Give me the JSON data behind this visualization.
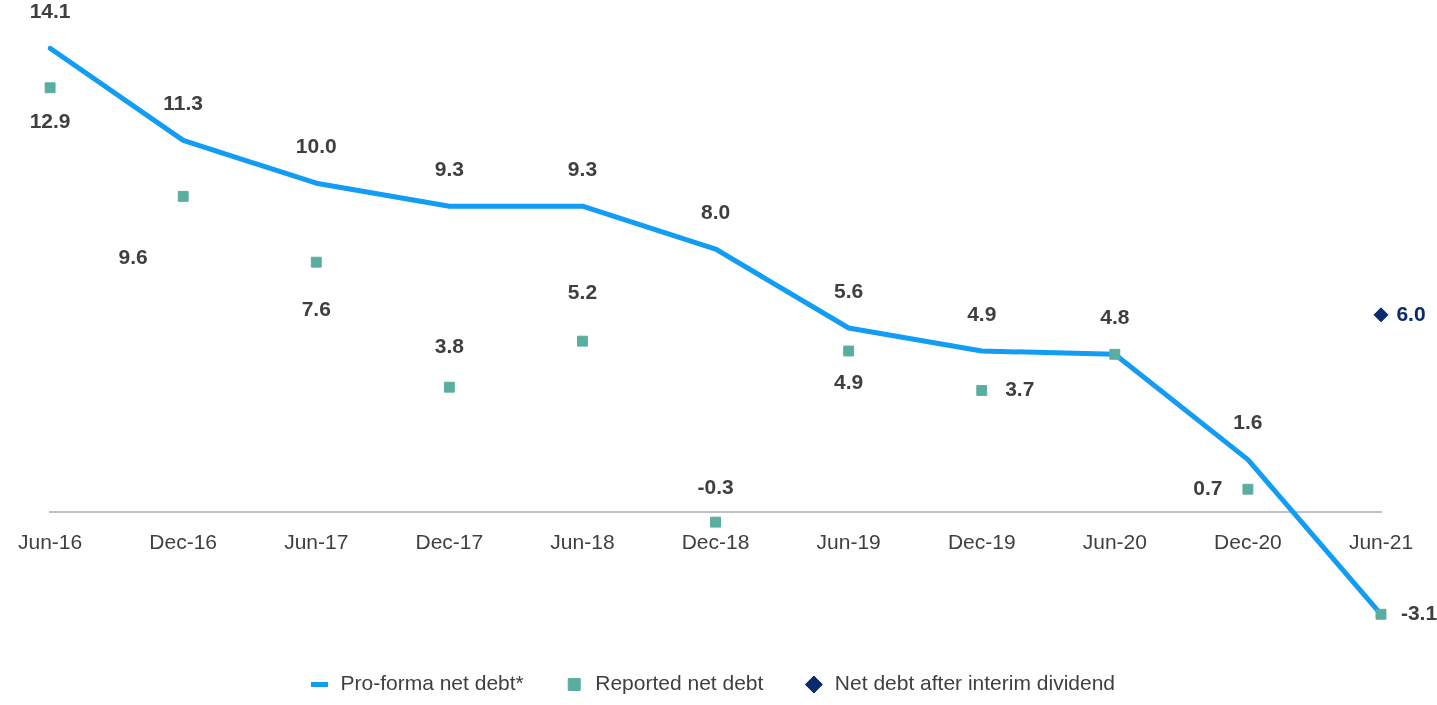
{
  "chart_data": {
    "type": "line",
    "categories": [
      "Jun-16",
      "Dec-16",
      "Jun-17",
      "Dec-17",
      "Jun-18",
      "Dec-18",
      "Jun-19",
      "Dec-19",
      "Jun-20",
      "Dec-20",
      "Jun-21"
    ],
    "series": [
      {
        "name": "Pro-forma net debt*",
        "color": "#129cf3",
        "values": [
          14.1,
          11.3,
          10.0,
          9.3,
          9.3,
          8.0,
          5.6,
          4.9,
          4.8,
          1.6,
          -3.1
        ],
        "value_labels": [
          "14.1",
          "11.3",
          "10.0",
          "9.3",
          "9.3",
          "8.0",
          "5.6",
          "4.9",
          "4.8",
          "1.6",
          null
        ]
      },
      {
        "name": "Reported net debt",
        "type": "scatter",
        "marker": "square",
        "color": "#5aaea0",
        "values": [
          12.9,
          9.6,
          7.6,
          3.8,
          5.2,
          -0.3,
          4.9,
          3.7,
          4.8,
          0.7,
          -3.1
        ],
        "value_labels": [
          "12.9",
          "9.6",
          "7.6",
          "3.8",
          "5.2",
          "-0.3",
          "4.9",
          "3.7",
          null,
          "0.7",
          "-3.1"
        ]
      },
      {
        "name": "Net debt after interim dividend",
        "type": "scatter",
        "marker": "diamond",
        "color": "#0c2a6e",
        "values": [
          null,
          null,
          null,
          null,
          null,
          null,
          null,
          null,
          null,
          null,
          6.0
        ],
        "value_labels": [
          null,
          null,
          null,
          null,
          null,
          null,
          null,
          null,
          null,
          null,
          "6.0"
        ]
      }
    ],
    "legend": "bottom",
    "grid": false,
    "marker": "none",
    "line_style": "solid",
    "tick_labels": "x"
  }
}
